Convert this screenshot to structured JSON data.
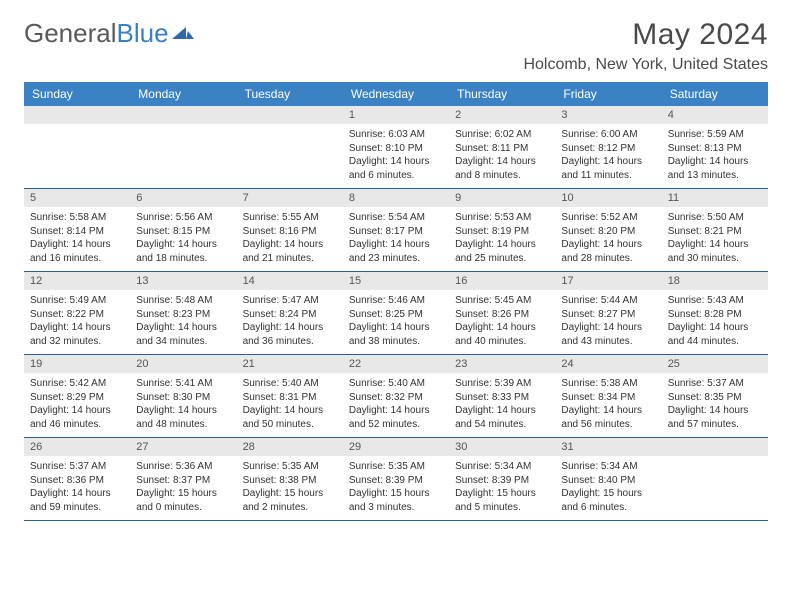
{
  "branding": {
    "text_gray": "General",
    "text_blue": "Blue",
    "mark_color": "#2f6aa8"
  },
  "header": {
    "month_title": "May 2024",
    "location": "Holcomb, New York, United States"
  },
  "style": {
    "header_bg": "#3b82c4",
    "header_fg": "#ffffff",
    "date_bg": "#e8e8e8",
    "rule_color": "#2f5f8f",
    "text_color": "#333333"
  },
  "day_names": [
    "Sunday",
    "Monday",
    "Tuesday",
    "Wednesday",
    "Thursday",
    "Friday",
    "Saturday"
  ],
  "weeks": [
    [
      {
        "date": "",
        "lines": []
      },
      {
        "date": "",
        "lines": []
      },
      {
        "date": "",
        "lines": []
      },
      {
        "date": "1",
        "lines": [
          "Sunrise: 6:03 AM",
          "Sunset: 8:10 PM",
          "Daylight: 14 hours and 6 minutes."
        ]
      },
      {
        "date": "2",
        "lines": [
          "Sunrise: 6:02 AM",
          "Sunset: 8:11 PM",
          "Daylight: 14 hours and 8 minutes."
        ]
      },
      {
        "date": "3",
        "lines": [
          "Sunrise: 6:00 AM",
          "Sunset: 8:12 PM",
          "Daylight: 14 hours and 11 minutes."
        ]
      },
      {
        "date": "4",
        "lines": [
          "Sunrise: 5:59 AM",
          "Sunset: 8:13 PM",
          "Daylight: 14 hours and 13 minutes."
        ]
      }
    ],
    [
      {
        "date": "5",
        "lines": [
          "Sunrise: 5:58 AM",
          "Sunset: 8:14 PM",
          "Daylight: 14 hours and 16 minutes."
        ]
      },
      {
        "date": "6",
        "lines": [
          "Sunrise: 5:56 AM",
          "Sunset: 8:15 PM",
          "Daylight: 14 hours and 18 minutes."
        ]
      },
      {
        "date": "7",
        "lines": [
          "Sunrise: 5:55 AM",
          "Sunset: 8:16 PM",
          "Daylight: 14 hours and 21 minutes."
        ]
      },
      {
        "date": "8",
        "lines": [
          "Sunrise: 5:54 AM",
          "Sunset: 8:17 PM",
          "Daylight: 14 hours and 23 minutes."
        ]
      },
      {
        "date": "9",
        "lines": [
          "Sunrise: 5:53 AM",
          "Sunset: 8:19 PM",
          "Daylight: 14 hours and 25 minutes."
        ]
      },
      {
        "date": "10",
        "lines": [
          "Sunrise: 5:52 AM",
          "Sunset: 8:20 PM",
          "Daylight: 14 hours and 28 minutes."
        ]
      },
      {
        "date": "11",
        "lines": [
          "Sunrise: 5:50 AM",
          "Sunset: 8:21 PM",
          "Daylight: 14 hours and 30 minutes."
        ]
      }
    ],
    [
      {
        "date": "12",
        "lines": [
          "Sunrise: 5:49 AM",
          "Sunset: 8:22 PM",
          "Daylight: 14 hours and 32 minutes."
        ]
      },
      {
        "date": "13",
        "lines": [
          "Sunrise: 5:48 AM",
          "Sunset: 8:23 PM",
          "Daylight: 14 hours and 34 minutes."
        ]
      },
      {
        "date": "14",
        "lines": [
          "Sunrise: 5:47 AM",
          "Sunset: 8:24 PM",
          "Daylight: 14 hours and 36 minutes."
        ]
      },
      {
        "date": "15",
        "lines": [
          "Sunrise: 5:46 AM",
          "Sunset: 8:25 PM",
          "Daylight: 14 hours and 38 minutes."
        ]
      },
      {
        "date": "16",
        "lines": [
          "Sunrise: 5:45 AM",
          "Sunset: 8:26 PM",
          "Daylight: 14 hours and 40 minutes."
        ]
      },
      {
        "date": "17",
        "lines": [
          "Sunrise: 5:44 AM",
          "Sunset: 8:27 PM",
          "Daylight: 14 hours and 43 minutes."
        ]
      },
      {
        "date": "18",
        "lines": [
          "Sunrise: 5:43 AM",
          "Sunset: 8:28 PM",
          "Daylight: 14 hours and 44 minutes."
        ]
      }
    ],
    [
      {
        "date": "19",
        "lines": [
          "Sunrise: 5:42 AM",
          "Sunset: 8:29 PM",
          "Daylight: 14 hours and 46 minutes."
        ]
      },
      {
        "date": "20",
        "lines": [
          "Sunrise: 5:41 AM",
          "Sunset: 8:30 PM",
          "Daylight: 14 hours and 48 minutes."
        ]
      },
      {
        "date": "21",
        "lines": [
          "Sunrise: 5:40 AM",
          "Sunset: 8:31 PM",
          "Daylight: 14 hours and 50 minutes."
        ]
      },
      {
        "date": "22",
        "lines": [
          "Sunrise: 5:40 AM",
          "Sunset: 8:32 PM",
          "Daylight: 14 hours and 52 minutes."
        ]
      },
      {
        "date": "23",
        "lines": [
          "Sunrise: 5:39 AM",
          "Sunset: 8:33 PM",
          "Daylight: 14 hours and 54 minutes."
        ]
      },
      {
        "date": "24",
        "lines": [
          "Sunrise: 5:38 AM",
          "Sunset: 8:34 PM",
          "Daylight: 14 hours and 56 minutes."
        ]
      },
      {
        "date": "25",
        "lines": [
          "Sunrise: 5:37 AM",
          "Sunset: 8:35 PM",
          "Daylight: 14 hours and 57 minutes."
        ]
      }
    ],
    [
      {
        "date": "26",
        "lines": [
          "Sunrise: 5:37 AM",
          "Sunset: 8:36 PM",
          "Daylight: 14 hours and 59 minutes."
        ]
      },
      {
        "date": "27",
        "lines": [
          "Sunrise: 5:36 AM",
          "Sunset: 8:37 PM",
          "Daylight: 15 hours and 0 minutes."
        ]
      },
      {
        "date": "28",
        "lines": [
          "Sunrise: 5:35 AM",
          "Sunset: 8:38 PM",
          "Daylight: 15 hours and 2 minutes."
        ]
      },
      {
        "date": "29",
        "lines": [
          "Sunrise: 5:35 AM",
          "Sunset: 8:39 PM",
          "Daylight: 15 hours and 3 minutes."
        ]
      },
      {
        "date": "30",
        "lines": [
          "Sunrise: 5:34 AM",
          "Sunset: 8:39 PM",
          "Daylight: 15 hours and 5 minutes."
        ]
      },
      {
        "date": "31",
        "lines": [
          "Sunrise: 5:34 AM",
          "Sunset: 8:40 PM",
          "Daylight: 15 hours and 6 minutes."
        ]
      },
      {
        "date": "",
        "lines": []
      }
    ]
  ]
}
